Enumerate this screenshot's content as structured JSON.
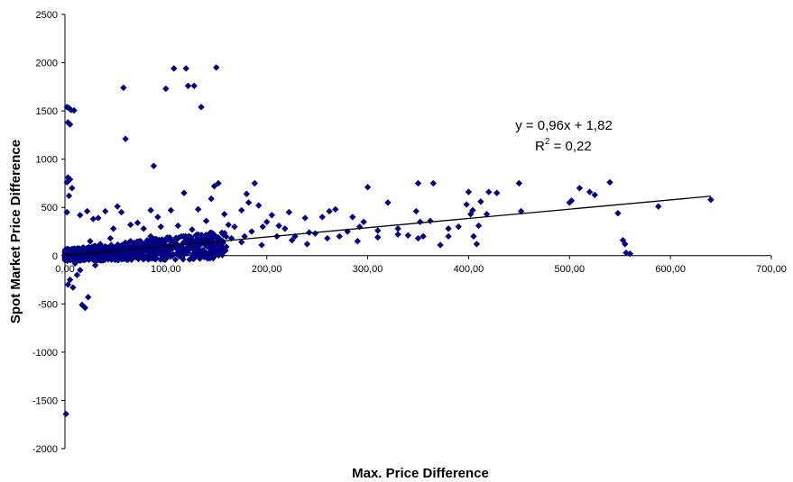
{
  "chart_data": {
    "type": "scatter",
    "title": "",
    "xlabel": "Max. Price Difference",
    "ylabel": "Spot Market Price Difference",
    "xlim": [
      0,
      700
    ],
    "ylim": [
      -2000,
      2500
    ],
    "x_ticks": [
      0,
      100,
      200,
      300,
      400,
      500,
      600,
      700
    ],
    "x_tick_labels": [
      "0,00",
      "100,00",
      "200,00",
      "300,00",
      "400,00",
      "500,00",
      "600,00",
      "700,00"
    ],
    "y_ticks": [
      -2000,
      -1500,
      -1000,
      -500,
      0,
      500,
      1000,
      1500,
      2000,
      2500
    ],
    "y_tick_labels": [
      "-2000",
      "-1500",
      "-1000",
      "-500",
      "0",
      "500",
      "1000",
      "1500",
      "2000",
      "2500"
    ],
    "grid": false,
    "marker_color": "#000080",
    "trendline": {
      "slope": 0.96,
      "intercept": 1.82,
      "x_range": [
        0,
        640
      ],
      "equation_label": "y = 0,96x + 1,82",
      "r2_prefix": "R",
      "r2_superscript": "2",
      "r2_value": " = 0,22",
      "color": "#000000"
    },
    "series": [
      {
        "points": [
          [
            2,
            1540
          ],
          [
            4,
            1530
          ],
          [
            6,
            1510
          ],
          [
            9,
            1505
          ],
          [
            3,
            1380
          ],
          [
            5,
            1360
          ],
          [
            3,
            810
          ],
          [
            5,
            790
          ],
          [
            2,
            760
          ],
          [
            7,
            700
          ],
          [
            4,
            620
          ],
          [
            2,
            450
          ],
          [
            1,
            -1640
          ],
          [
            3,
            -300
          ],
          [
            5,
            -250
          ],
          [
            8,
            -330
          ],
          [
            12,
            -200
          ],
          [
            17,
            -510
          ],
          [
            20,
            -540
          ],
          [
            23,
            -430
          ],
          [
            15,
            -150
          ],
          [
            30,
            -100
          ],
          [
            10,
            -80
          ],
          [
            58,
            1740
          ],
          [
            60,
            1210
          ],
          [
            88,
            930
          ],
          [
            100,
            1730
          ],
          [
            108,
            1940
          ],
          [
            120,
            1940
          ],
          [
            122,
            1760
          ],
          [
            128,
            1760
          ],
          [
            135,
            1540
          ],
          [
            150,
            1950
          ],
          [
            15,
            420
          ],
          [
            22,
            460
          ],
          [
            28,
            380
          ],
          [
            33,
            390
          ],
          [
            40,
            460
          ],
          [
            48,
            280
          ],
          [
            52,
            510
          ],
          [
            56,
            450
          ],
          [
            65,
            320
          ],
          [
            72,
            340
          ],
          [
            78,
            280
          ],
          [
            85,
            470
          ],
          [
            92,
            400
          ],
          [
            95,
            300
          ],
          [
            105,
            470
          ],
          [
            112,
            310
          ],
          [
            118,
            650
          ],
          [
            126,
            270
          ],
          [
            132,
            480
          ],
          [
            140,
            360
          ],
          [
            145,
            590
          ],
          [
            148,
            720
          ],
          [
            152,
            750
          ],
          [
            158,
            430
          ],
          [
            162,
            320
          ],
          [
            168,
            300
          ],
          [
            175,
            470
          ],
          [
            178,
            200
          ],
          [
            180,
            640
          ],
          [
            182,
            550
          ],
          [
            188,
            750
          ],
          [
            192,
            520
          ],
          [
            196,
            300
          ],
          [
            200,
            350
          ],
          [
            205,
            420
          ],
          [
            212,
            310
          ],
          [
            218,
            280
          ],
          [
            222,
            450
          ],
          [
            228,
            200
          ],
          [
            238,
            390
          ],
          [
            242,
            240
          ],
          [
            248,
            230
          ],
          [
            255,
            400
          ],
          [
            262,
            460
          ],
          [
            268,
            480
          ],
          [
            272,
            200
          ],
          [
            280,
            250
          ],
          [
            285,
            400
          ],
          [
            292,
            300
          ],
          [
            296,
            350
          ],
          [
            300,
            710
          ],
          [
            310,
            190
          ],
          [
            320,
            550
          ],
          [
            330,
            280
          ],
          [
            340,
            210
          ],
          [
            348,
            460
          ],
          [
            350,
            750
          ],
          [
            352,
            350
          ],
          [
            355,
            200
          ],
          [
            362,
            360
          ],
          [
            365,
            750
          ],
          [
            372,
            110
          ],
          [
            380,
            200
          ],
          [
            390,
            300
          ],
          [
            398,
            530
          ],
          [
            400,
            660
          ],
          [
            402,
            430
          ],
          [
            404,
            470
          ],
          [
            405,
            200
          ],
          [
            408,
            120
          ],
          [
            412,
            560
          ],
          [
            418,
            430
          ],
          [
            420,
            660
          ],
          [
            428,
            650
          ],
          [
            450,
            750
          ],
          [
            452,
            460
          ],
          [
            500,
            550
          ],
          [
            502,
            570
          ],
          [
            510,
            700
          ],
          [
            520,
            660
          ],
          [
            525,
            630
          ],
          [
            540,
            760
          ],
          [
            548,
            440
          ],
          [
            553,
            160
          ],
          [
            555,
            120
          ],
          [
            556,
            30
          ],
          [
            560,
            20
          ],
          [
            588,
            510
          ],
          [
            640,
            580
          ],
          [
            25,
            150
          ],
          [
            35,
            120
          ],
          [
            45,
            180
          ],
          [
            55,
            90
          ],
          [
            65,
            150
          ],
          [
            75,
            60
          ],
          [
            85,
            200
          ],
          [
            95,
            110
          ],
          [
            105,
            160
          ],
          [
            115,
            80
          ],
          [
            125,
            190
          ],
          [
            135,
            130
          ],
          [
            145,
            220
          ],
          [
            155,
            100
          ],
          [
            165,
            180
          ],
          [
            175,
            140
          ],
          [
            185,
            250
          ],
          [
            195,
            110
          ],
          [
            210,
            200
          ],
          [
            225,
            160
          ],
          [
            240,
            120
          ],
          [
            260,
            180
          ],
          [
            290,
            150
          ],
          [
            310,
            260
          ],
          [
            330,
            220
          ],
          [
            350,
            180
          ],
          [
            380,
            280
          ],
          [
            410,
            310
          ]
        ]
      }
    ]
  }
}
